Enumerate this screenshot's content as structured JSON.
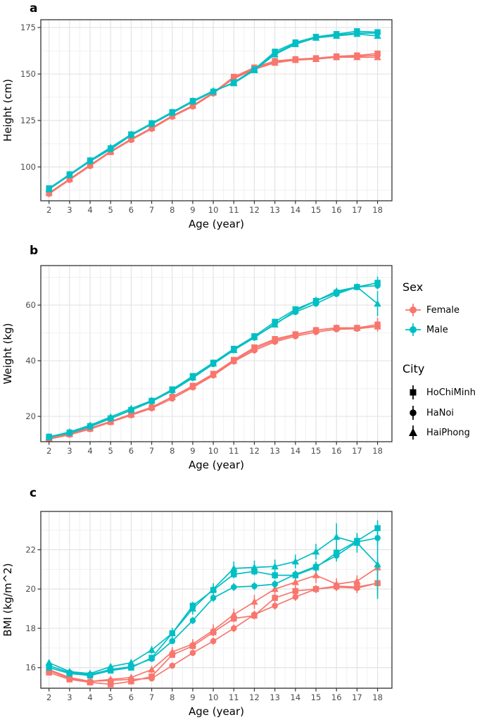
{
  "figure": {
    "panel_labels": [
      "a",
      "b",
      "c"
    ],
    "colors": {
      "female": "#F8766D",
      "male": "#00BFC4",
      "legend_key": "#000000",
      "grid_major": "#E3E3E3",
      "grid_minor": "#F0F0F0",
      "panel_border": "#333333",
      "tick_mark": "#333333",
      "tick_text": "#4D4D4D",
      "axis_title_text": "#000000",
      "background": "#FFFFFF"
    },
    "legend": {
      "sex_title": "Sex",
      "sex_items": [
        {
          "label": "Female",
          "color": "#F8766D"
        },
        {
          "label": "Male",
          "color": "#00BFC4"
        }
      ],
      "city_title": "City",
      "city_items": [
        {
          "label": "HoChiMinh",
          "marker": "square"
        },
        {
          "label": "HaNoi",
          "marker": "circle"
        },
        {
          "label": "HaiPhong",
          "marker": "triangle"
        }
      ]
    }
  },
  "chart_data": [
    {
      "panel": "a",
      "type": "line",
      "title": "",
      "xlabel": "Age (year)",
      "ylabel": "Height (cm)",
      "x": [
        2,
        3,
        4,
        5,
        6,
        7,
        8,
        9,
        10,
        11,
        12,
        13,
        14,
        15,
        16,
        17,
        18
      ],
      "xlim": [
        1.6,
        18.7
      ],
      "ylim": [
        81.8,
        179.2
      ],
      "yticks": [
        100,
        125,
        150,
        175
      ],
      "yticks_minor": [
        87.5,
        112.5,
        137.5,
        162.5
      ],
      "grid": true,
      "legend_position": "none",
      "series": [
        {
          "name": "Female HaNoi",
          "sex": "Female",
          "city": "HaNoi",
          "color": "#F8766D",
          "marker": "circle",
          "values": [
            85.5,
            93.0,
            100.5,
            108.0,
            114.5,
            120.5,
            127.0,
            132.5,
            139.5,
            148.0,
            153.0,
            156.5,
            157.5,
            158.5,
            159.0,
            159.5,
            160.0
          ],
          "se": [
            0.5,
            0.5,
            0.5,
            0.5,
            0.5,
            0.5,
            0.5,
            0.5,
            0.5,
            0.5,
            0.5,
            0.6,
            0.6,
            0.7,
            0.8,
            0.8,
            1.0
          ]
        },
        {
          "name": "Female HoChiMinh",
          "sex": "Female",
          "city": "HoChiMinh",
          "color": "#F8766D",
          "marker": "square",
          "values": [
            86.0,
            93.5,
            101.0,
            108.0,
            115.0,
            121.0,
            127.5,
            133.0,
            140.0,
            148.5,
            153.5,
            157.0,
            158.0,
            158.5,
            159.5,
            160.0,
            161.0
          ],
          "se": [
            0.5,
            0.5,
            0.5,
            0.5,
            0.5,
            0.5,
            0.5,
            0.5,
            0.5,
            0.5,
            0.5,
            0.6,
            0.6,
            0.7,
            0.8,
            0.8,
            1.0
          ]
        },
        {
          "name": "Female HaiPhong",
          "sex": "Female",
          "city": "HaiPhong",
          "color": "#F8766D",
          "marker": "triangle",
          "values": [
            86.0,
            93.5,
            101.0,
            108.5,
            115.0,
            121.0,
            127.5,
            133.0,
            140.0,
            147.5,
            152.5,
            156.0,
            157.5,
            158.0,
            159.0,
            159.0,
            159.0
          ],
          "se": [
            0.5,
            0.5,
            0.5,
            0.5,
            0.5,
            0.5,
            0.5,
            0.5,
            0.5,
            0.5,
            0.5,
            0.6,
            0.6,
            0.7,
            0.8,
            0.8,
            1.0
          ]
        },
        {
          "name": "Male HaNoi",
          "sex": "Male",
          "city": "HaNoi",
          "color": "#00BFC4",
          "marker": "circle",
          "values": [
            88.0,
            95.5,
            103.0,
            109.5,
            117.0,
            123.0,
            129.0,
            135.0,
            140.5,
            145.5,
            152.5,
            161.0,
            166.5,
            169.5,
            171.0,
            172.0,
            172.0
          ],
          "se": [
            0.5,
            0.5,
            0.5,
            0.5,
            0.5,
            0.5,
            0.5,
            0.5,
            0.5,
            0.5,
            0.5,
            0.6,
            0.6,
            0.7,
            0.8,
            0.8,
            1.0
          ]
        },
        {
          "name": "Male HoChiMinh",
          "sex": "Male",
          "city": "HoChiMinh",
          "color": "#00BFC4",
          "marker": "square",
          "values": [
            88.5,
            96.0,
            103.5,
            110.0,
            117.5,
            123.5,
            129.5,
            135.5,
            140.5,
            145.5,
            152.5,
            162.0,
            167.0,
            170.0,
            171.5,
            173.0,
            172.5
          ],
          "se": [
            0.5,
            0.5,
            0.5,
            0.5,
            0.5,
            0.5,
            0.5,
            0.5,
            0.5,
            0.5,
            0.5,
            0.6,
            0.6,
            0.7,
            0.8,
            0.8,
            1.0
          ]
        },
        {
          "name": "Male HaiPhong",
          "sex": "Male",
          "city": "HaiPhong",
          "color": "#00BFC4",
          "marker": "triangle",
          "values": [
            88.0,
            96.0,
            103.5,
            110.5,
            117.5,
            123.5,
            129.5,
            135.5,
            141.0,
            145.0,
            152.0,
            160.5,
            166.0,
            169.5,
            170.5,
            171.5,
            170.5
          ],
          "se": [
            0.5,
            0.5,
            0.5,
            0.5,
            0.5,
            0.5,
            0.5,
            0.5,
            0.5,
            0.5,
            0.5,
            0.6,
            0.6,
            0.7,
            0.8,
            0.8,
            1.0
          ]
        }
      ]
    },
    {
      "panel": "b",
      "type": "line",
      "title": "",
      "xlabel": "Age (year)",
      "ylabel": "Weight (kg)",
      "x": [
        2,
        3,
        4,
        5,
        6,
        7,
        8,
        9,
        10,
        11,
        12,
        13,
        14,
        15,
        16,
        17,
        18
      ],
      "xlim": [
        1.6,
        18.7
      ],
      "ylim": [
        10.9,
        74.2
      ],
      "yticks": [
        20,
        40,
        60
      ],
      "yticks_minor": [
        30,
        50,
        70
      ],
      "grid": true,
      "legend_position": "right",
      "series": [
        {
          "name": "Female HaNoi",
          "sex": "Female",
          "city": "HaNoi",
          "color": "#F8766D",
          "marker": "circle",
          "values": [
            11.8,
            13.4,
            15.4,
            17.9,
            20.4,
            22.9,
            26.4,
            30.4,
            34.7,
            39.7,
            43.7,
            46.8,
            48.8,
            50.3,
            51.3,
            51.5,
            52.3
          ],
          "se": [
            0.2,
            0.2,
            0.2,
            0.25,
            0.3,
            0.3,
            0.35,
            0.4,
            0.45,
            0.5,
            0.6,
            0.6,
            0.7,
            0.7,
            0.7,
            0.7,
            0.9
          ]
        },
        {
          "name": "Female HoChiMinh",
          "sex": "Female",
          "city": "HoChiMinh",
          "color": "#F8766D",
          "marker": "square",
          "values": [
            12.0,
            13.6,
            15.6,
            18.0,
            20.6,
            23.2,
            27.0,
            31.0,
            35.3,
            40.3,
            44.8,
            47.8,
            49.5,
            51.0,
            51.8,
            51.8,
            53.0
          ],
          "se": [
            0.2,
            0.2,
            0.25,
            0.3,
            0.3,
            0.35,
            0.4,
            0.5,
            0.5,
            0.6,
            0.7,
            0.7,
            0.8,
            0.8,
            0.8,
            0.8,
            2.5
          ]
        },
        {
          "name": "Female HaiPhong",
          "sex": "Female",
          "city": "HaiPhong",
          "color": "#F8766D",
          "marker": "triangle",
          "values": [
            12.0,
            13.7,
            15.8,
            18.2,
            20.8,
            23.3,
            27.0,
            30.8,
            35.0,
            40.0,
            44.3,
            47.3,
            49.3,
            51.0,
            51.8,
            51.8,
            52.3
          ],
          "se": [
            0.2,
            0.2,
            0.25,
            0.3,
            0.3,
            0.35,
            0.4,
            0.5,
            0.5,
            0.6,
            0.7,
            0.7,
            0.8,
            0.8,
            0.8,
            0.8,
            1.0
          ]
        },
        {
          "name": "Male HaNoi",
          "sex": "Male",
          "city": "HaNoi",
          "color": "#00BFC4",
          "marker": "circle",
          "values": [
            12.5,
            14.0,
            16.3,
            19.2,
            22.2,
            25.3,
            29.2,
            33.8,
            38.8,
            43.8,
            48.3,
            53.3,
            57.5,
            60.5,
            64.0,
            66.5,
            67.0
          ],
          "se": [
            0.2,
            0.2,
            0.25,
            0.3,
            0.3,
            0.35,
            0.4,
            0.5,
            0.5,
            0.6,
            0.7,
            0.8,
            0.9,
            1.0,
            1.0,
            1.0,
            1.2
          ]
        },
        {
          "name": "Male HoChiMinh",
          "sex": "Male",
          "city": "HoChiMinh",
          "color": "#00BFC4",
          "marker": "square",
          "values": [
            12.7,
            14.2,
            16.5,
            19.3,
            22.3,
            25.6,
            29.7,
            34.5,
            39.3,
            44.3,
            48.8,
            54.0,
            58.5,
            61.5,
            64.5,
            66.5,
            68.0
          ],
          "se": [
            0.2,
            0.2,
            0.25,
            0.3,
            0.3,
            0.35,
            0.4,
            0.5,
            0.5,
            0.6,
            0.7,
            0.8,
            0.9,
            1.0,
            1.0,
            1.0,
            2.2
          ]
        },
        {
          "name": "Male HaiPhong",
          "sex": "Male",
          "city": "HaiPhong",
          "color": "#00BFC4",
          "marker": "triangle",
          "values": [
            12.6,
            14.4,
            16.8,
            19.8,
            22.8,
            25.7,
            29.5,
            34.0,
            39.0,
            43.8,
            48.5,
            53.0,
            58.0,
            61.5,
            65.0,
            66.5,
            60.5
          ],
          "se": [
            0.2,
            0.25,
            0.3,
            0.35,
            0.4,
            0.4,
            0.5,
            0.6,
            0.6,
            0.7,
            0.8,
            0.9,
            1.0,
            1.5,
            1.2,
            1.2,
            4.5
          ]
        }
      ]
    },
    {
      "panel": "c",
      "type": "line",
      "title": "",
      "xlabel": "Age (year)",
      "ylabel": "BMI (kg/m^2)",
      "x": [
        2,
        3,
        4,
        5,
        6,
        7,
        8,
        9,
        10,
        11,
        12,
        13,
        14,
        15,
        16,
        17,
        18
      ],
      "xlim": [
        1.6,
        18.7
      ],
      "ylim": [
        14.95,
        23.95
      ],
      "yticks": [
        16,
        18,
        20,
        22
      ],
      "yticks_minor": [
        15,
        17,
        19,
        21,
        23
      ],
      "grid": true,
      "legend_position": "none",
      "series": [
        {
          "name": "Female HaNoi",
          "sex": "Female",
          "city": "HaNoi",
          "color": "#F8766D",
          "marker": "circle",
          "values": [
            15.85,
            15.45,
            15.3,
            15.35,
            15.4,
            15.45,
            16.1,
            16.75,
            17.35,
            18.0,
            18.7,
            19.15,
            19.6,
            20.0,
            20.1,
            20.05,
            20.3
          ],
          "se": [
            0.12,
            0.1,
            0.1,
            0.1,
            0.1,
            0.1,
            0.12,
            0.15,
            0.18,
            0.2,
            0.2,
            0.2,
            0.2,
            0.2,
            0.2,
            0.25,
            0.3
          ]
        },
        {
          "name": "Female HoChiMinh",
          "sex": "Female",
          "city": "HoChiMinh",
          "color": "#F8766D",
          "marker": "square",
          "values": [
            15.75,
            15.4,
            15.25,
            15.15,
            15.3,
            15.55,
            16.65,
            17.1,
            17.8,
            18.5,
            18.65,
            19.55,
            19.9,
            20.0,
            20.15,
            20.1,
            20.3
          ],
          "se": [
            0.12,
            0.1,
            0.1,
            0.1,
            0.1,
            0.12,
            0.15,
            0.18,
            0.2,
            0.2,
            0.2,
            0.2,
            0.2,
            0.2,
            0.25,
            0.3,
            0.6
          ]
        },
        {
          "name": "Female HaiPhong",
          "sex": "Female",
          "city": "HaiPhong",
          "color": "#F8766D",
          "marker": "triangle",
          "values": [
            15.9,
            15.5,
            15.3,
            15.4,
            15.5,
            15.9,
            16.8,
            17.2,
            17.9,
            18.7,
            19.35,
            20.0,
            20.35,
            20.7,
            20.25,
            20.4,
            21.1
          ],
          "se": [
            0.15,
            0.12,
            0.12,
            0.12,
            0.15,
            0.18,
            0.25,
            0.25,
            0.3,
            0.3,
            0.35,
            0.35,
            0.35,
            0.4,
            0.3,
            0.3,
            0.45
          ]
        },
        {
          "name": "Male HaNoi",
          "sex": "Male",
          "city": "HaNoi",
          "color": "#00BFC4",
          "marker": "circle",
          "values": [
            16.1,
            15.75,
            15.65,
            15.9,
            16.05,
            16.45,
            17.35,
            18.4,
            19.55,
            20.1,
            20.15,
            20.25,
            20.75,
            21.15,
            21.7,
            22.4,
            22.6
          ],
          "se": [
            0.12,
            0.1,
            0.1,
            0.1,
            0.1,
            0.12,
            0.15,
            0.18,
            0.2,
            0.2,
            0.2,
            0.2,
            0.2,
            0.25,
            0.3,
            0.3,
            0.35
          ]
        },
        {
          "name": "Male HoChiMinh",
          "sex": "Male",
          "city": "HoChiMinh",
          "color": "#00BFC4",
          "marker": "square",
          "values": [
            16.0,
            15.7,
            15.6,
            15.85,
            16.0,
            16.5,
            17.75,
            19.15,
            19.95,
            20.75,
            20.9,
            20.7,
            20.7,
            21.1,
            21.85,
            22.45,
            23.1
          ],
          "se": [
            0.12,
            0.1,
            0.1,
            0.1,
            0.1,
            0.12,
            0.15,
            0.2,
            0.2,
            0.2,
            0.2,
            0.2,
            0.2,
            0.25,
            0.3,
            0.35,
            0.4
          ]
        },
        {
          "name": "Male HaiPhong",
          "sex": "Male",
          "city": "HaiPhong",
          "color": "#00BFC4",
          "marker": "triangle",
          "values": [
            16.25,
            15.8,
            15.7,
            16.05,
            16.25,
            16.9,
            17.75,
            19.0,
            20.0,
            21.05,
            21.1,
            21.15,
            21.4,
            21.9,
            22.65,
            22.35,
            21.25
          ],
          "se": [
            0.15,
            0.12,
            0.12,
            0.15,
            0.18,
            0.2,
            0.28,
            0.3,
            0.3,
            0.35,
            0.35,
            0.35,
            0.35,
            0.4,
            0.7,
            0.5,
            1.75
          ]
        }
      ]
    }
  ]
}
